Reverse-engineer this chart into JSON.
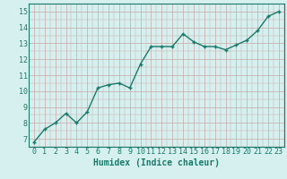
{
  "x": [
    0,
    1,
    2,
    3,
    4,
    5,
    6,
    7,
    8,
    9,
    10,
    11,
    12,
    13,
    14,
    15,
    16,
    17,
    18,
    19,
    20,
    21,
    22,
    23
  ],
  "y": [
    6.8,
    7.6,
    8.0,
    8.6,
    8.0,
    8.7,
    10.2,
    10.4,
    10.5,
    10.2,
    11.7,
    12.8,
    12.8,
    12.8,
    13.6,
    13.1,
    12.8,
    12.8,
    12.6,
    12.9,
    13.2,
    13.8,
    14.7,
    15.0
  ],
  "line_color": "#1a7a6a",
  "marker": "+",
  "markersize": 3.5,
  "linewidth": 1.0,
  "bg_color": "#d5f0ee",
  "grid_color": "#c9a8a8",
  "xlabel": "Humidex (Indice chaleur)",
  "xlabel_fontsize": 7,
  "tick_fontsize": 6,
  "xlim": [
    -0.5,
    23.5
  ],
  "ylim": [
    6.5,
    15.5
  ],
  "yticks": [
    7,
    8,
    9,
    10,
    11,
    12,
    13,
    14,
    15
  ],
  "xticks": [
    0,
    1,
    2,
    3,
    4,
    5,
    6,
    7,
    8,
    9,
    10,
    11,
    12,
    13,
    14,
    15,
    16,
    17,
    18,
    19,
    20,
    21,
    22,
    23
  ],
  "xtick_labels": [
    "0",
    "1",
    "2",
    "3",
    "4",
    "5",
    "6",
    "7",
    "8",
    "9",
    "10",
    "11",
    "12",
    "13",
    "14",
    "15",
    "16",
    "17",
    "18",
    "19",
    "20",
    "21",
    "22",
    "23"
  ]
}
